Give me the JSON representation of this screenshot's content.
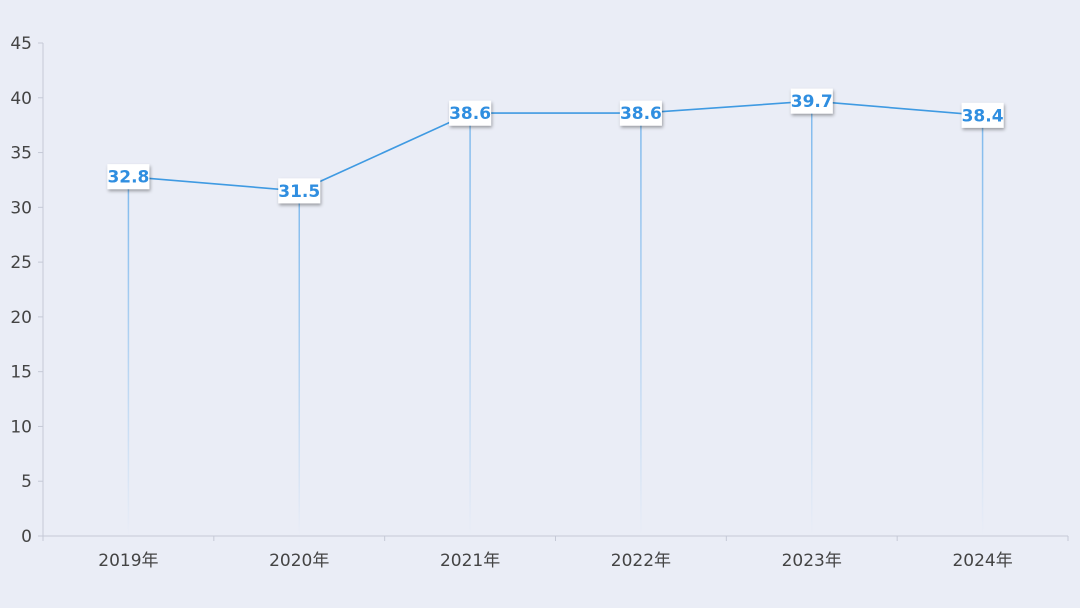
{
  "colors": {
    "background": "#eaedf6",
    "line": "#3f9ae2",
    "label_text": "#2f8ee0",
    "label_box": "#ffffff",
    "axis": "#c5c9d6",
    "tick_text": "#444444"
  },
  "chart_data": {
    "type": "line",
    "title": "",
    "xlabel": "",
    "ylabel": "",
    "categories": [
      "2019年",
      "2020年",
      "2021年",
      "2022年",
      "2023年",
      "2024年"
    ],
    "series": [
      {
        "values": [
          32.8,
          31.5,
          38.6,
          38.6,
          39.7,
          38.4
        ],
        "labels": [
          "32.8",
          "31.5",
          "38.6",
          "38.6",
          "39.7",
          "38.4"
        ]
      }
    ],
    "ylim": [
      0,
      45
    ],
    "yticks": [
      0,
      5,
      10,
      15,
      20,
      25,
      30,
      35,
      40,
      45
    ],
    "yticks_labels": [
      "0",
      "5",
      "10",
      "15",
      "20",
      "25",
      "30",
      "35",
      "40",
      "45"
    ],
    "grid": false,
    "legend": "none",
    "drop_lines": true
  }
}
